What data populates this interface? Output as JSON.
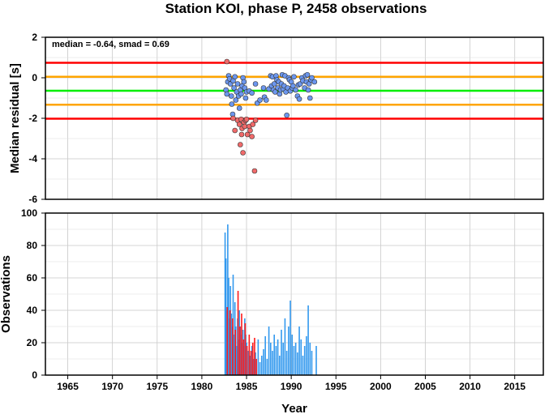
{
  "chart_data": [
    {
      "type": "scatter",
      "title": "Station KOI, phase P, 2458 observations",
      "annotation": "median = -0.64, smad = 0.69",
      "ylabel": "Median residual [s]",
      "xlim": [
        1962.5,
        2018.2
      ],
      "ylim": [
        -6,
        2
      ],
      "grid": true,
      "yticks": [
        2,
        0,
        -2,
        -4,
        -6
      ],
      "hlines": [
        {
          "y": 0.74,
          "color": "#ff0000"
        },
        {
          "y": 0.05,
          "color": "#ffa500"
        },
        {
          "y": -0.64,
          "color": "#00ee00"
        },
        {
          "y": -1.33,
          "color": "#ffa500"
        },
        {
          "y": -2.02,
          "color": "#ff0000"
        }
      ],
      "series": [
        {
          "color": "#6b96ee",
          "points": [
            [
              1982.7,
              -0.6
            ],
            [
              1982.8,
              -0.8
            ],
            [
              1982.9,
              -0.2
            ],
            [
              1983.0,
              0.1
            ],
            [
              1983.1,
              -0.05
            ],
            [
              1983.2,
              -0.3
            ],
            [
              1983.3,
              -0.9
            ],
            [
              1983.35,
              -1.3
            ],
            [
              1983.45,
              -1.8
            ],
            [
              1983.5,
              -0.15
            ],
            [
              1983.6,
              -0.5
            ],
            [
              1983.7,
              0.05
            ],
            [
              1983.8,
              -1.1
            ],
            [
              1983.9,
              -0.7
            ],
            [
              1984.0,
              -0.3
            ],
            [
              1984.1,
              -0.9
            ],
            [
              1984.2,
              -1.5
            ],
            [
              1984.3,
              -0.6
            ],
            [
              1984.4,
              -0.8
            ],
            [
              1984.5,
              -0.4
            ],
            [
              1984.6,
              0.0
            ],
            [
              1984.7,
              -0.2
            ],
            [
              1984.8,
              -0.5
            ],
            [
              1984.9,
              -1.0
            ],
            [
              1985.0,
              -0.7
            ],
            [
              1985.3,
              -0.65
            ],
            [
              1985.6,
              -0.75
            ],
            [
              1986.0,
              -0.3
            ],
            [
              1986.2,
              -1.25
            ],
            [
              1986.5,
              -1.1
            ],
            [
              1986.9,
              -0.5
            ],
            [
              1987.0,
              -0.95
            ],
            [
              1987.2,
              -1.1
            ],
            [
              1987.5,
              -0.55
            ],
            [
              1987.7,
              0.1
            ],
            [
              1987.8,
              -0.4
            ],
            [
              1987.9,
              0.05
            ],
            [
              1988.0,
              -0.6
            ],
            [
              1988.1,
              -0.3
            ],
            [
              1988.2,
              -0.7
            ],
            [
              1988.3,
              0.1
            ],
            [
              1988.4,
              -0.1
            ],
            [
              1988.5,
              -0.5
            ],
            [
              1988.6,
              -0.2
            ],
            [
              1988.7,
              -0.8
            ],
            [
              1988.8,
              -0.6
            ],
            [
              1988.9,
              -0.3
            ],
            [
              1989.0,
              0.15
            ],
            [
              1989.1,
              -0.55
            ],
            [
              1989.2,
              -0.4
            ],
            [
              1989.3,
              0.1
            ],
            [
              1989.4,
              -0.7
            ],
            [
              1989.5,
              -1.85
            ],
            [
              1989.6,
              -0.5
            ],
            [
              1989.7,
              0.0
            ],
            [
              1989.8,
              -0.1
            ],
            [
              1989.9,
              -0.65
            ],
            [
              1990.0,
              -0.2
            ],
            [
              1990.1,
              -0.5
            ],
            [
              1990.2,
              -0.4
            ],
            [
              1990.3,
              0.05
            ],
            [
              1990.5,
              -0.6
            ],
            [
              1990.7,
              -0.9
            ],
            [
              1990.8,
              -0.35
            ],
            [
              1990.9,
              -1.05
            ],
            [
              1991.0,
              -0.3
            ],
            [
              1991.2,
              0.0
            ],
            [
              1991.3,
              -0.15
            ],
            [
              1991.5,
              -0.5
            ],
            [
              1991.6,
              0.1
            ],
            [
              1991.7,
              -0.2
            ],
            [
              1991.8,
              0.15
            ],
            [
              1991.9,
              -0.6
            ],
            [
              1992.0,
              -0.3
            ],
            [
              1992.1,
              -1.0
            ],
            [
              1992.2,
              -0.1
            ],
            [
              1992.3,
              0.0
            ],
            [
              1992.6,
              -0.2
            ]
          ]
        },
        {
          "color": "#f06a6a",
          "points": [
            [
              1982.8,
              0.8
            ],
            [
              1983.5,
              -2.0
            ],
            [
              1983.7,
              -2.6
            ],
            [
              1984.0,
              -2.1
            ],
            [
              1984.2,
              -2.3
            ],
            [
              1984.4,
              -2.05
            ],
            [
              1984.5,
              -2.5
            ],
            [
              1984.6,
              -3.7
            ],
            [
              1984.7,
              -2.2
            ],
            [
              1984.8,
              -2.4
            ],
            [
              1984.9,
              -2.1
            ],
            [
              1985.0,
              -2.05
            ],
            [
              1985.1,
              -2.8
            ],
            [
              1985.3,
              -2.4
            ],
            [
              1985.4,
              -2.6
            ],
            [
              1985.6,
              -2.9
            ],
            [
              1985.7,
              -2.3
            ],
            [
              1985.9,
              -4.6
            ],
            [
              1986.0,
              -2.1
            ],
            [
              1984.3,
              -3.3
            ],
            [
              1984.45,
              -2.8
            ]
          ]
        }
      ]
    },
    {
      "type": "bar",
      "xlabel": "Year",
      "ylabel": "Observations",
      "xlim": [
        1962.5,
        2018.2
      ],
      "ylim": [
        0,
        100
      ],
      "grid": true,
      "yticks": [
        100,
        80,
        60,
        40,
        20,
        0
      ],
      "xticks": [
        "1965",
        "1970",
        "1975",
        "1980",
        "1985",
        "1990",
        "1995",
        "2000",
        "2005",
        "2010",
        "2015"
      ],
      "series": [
        {
          "color": "#3399ee",
          "x": [
            1982.6,
            1982.7,
            1982.8,
            1982.9,
            1983.0,
            1983.1,
            1983.2,
            1983.3,
            1983.4,
            1983.5,
            1983.6,
            1983.7,
            1983.8,
            1983.9,
            1984.0,
            1984.1,
            1984.2,
            1984.3,
            1984.4,
            1984.5,
            1984.6,
            1984.7,
            1984.8,
            1984.9,
            1985.0,
            1985.2,
            1985.4,
            1985.6,
            1985.8,
            1986.0,
            1986.3,
            1986.5,
            1986.7,
            1986.9,
            1987.1,
            1987.3,
            1987.5,
            1987.7,
            1987.9,
            1988.1,
            1988.3,
            1988.5,
            1988.7,
            1988.9,
            1989.1,
            1989.3,
            1989.5,
            1989.7,
            1989.9,
            1990.1,
            1990.3,
            1990.5,
            1990.7,
            1990.9,
            1991.1,
            1991.3,
            1991.5,
            1991.7,
            1991.9,
            1992.1,
            1992.3,
            1992.8
          ],
          "values": [
            88,
            72,
            40,
            93,
            60,
            35,
            55,
            38,
            30,
            62,
            25,
            45,
            30,
            18,
            35,
            22,
            40,
            30,
            25,
            20,
            28,
            18,
            35,
            25,
            20,
            15,
            12,
            18,
            10,
            14,
            22,
            8,
            12,
            16,
            24,
            10,
            30,
            20,
            15,
            25,
            18,
            22,
            12,
            28,
            20,
            35,
            15,
            30,
            46,
            25,
            18,
            20,
            14,
            30,
            22,
            12,
            18,
            24,
            43,
            20,
            15,
            18
          ]
        },
        {
          "color": "#ff1a1a",
          "x": [
            1982.85,
            1983.15,
            1983.45,
            1983.75,
            1984.05,
            1984.25,
            1984.45,
            1984.65,
            1984.85,
            1985.05,
            1985.3,
            1985.5,
            1985.7,
            1985.9,
            1986.1
          ],
          "values": [
            42,
            40,
            35,
            28,
            52,
            30,
            38,
            22,
            32,
            18,
            25,
            15,
            20,
            23,
            10
          ]
        }
      ]
    }
  ]
}
